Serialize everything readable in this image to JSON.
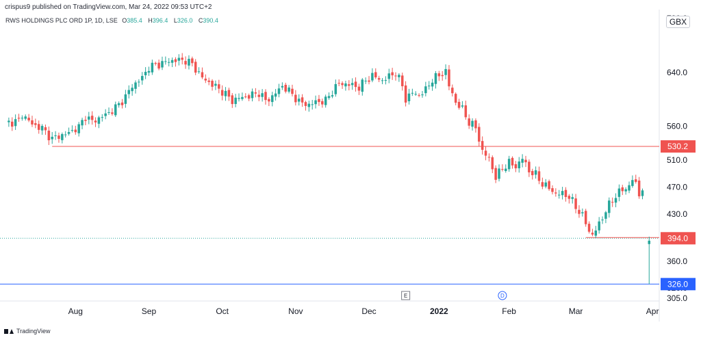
{
  "header": {
    "publisher": "crispus9 published on TradingView.com, Mar 24, 2022 09:53 UTC+2"
  },
  "legend": {
    "symbol": "RWS HOLDINGS PLC ORD 1P, 1D, LSE",
    "open_label": "O",
    "open": "385.4",
    "high_label": "H",
    "high": "396.4",
    "low_label": "L",
    "low": "326.0",
    "close_label": "C",
    "close": "390.4"
  },
  "currency": "GBX",
  "footer": {
    "brand": "TradingView"
  },
  "colors": {
    "up": "#26a69a",
    "down": "#ef5350",
    "resistance_line": "#ef5350",
    "support_line": "#2962ff",
    "current_price_tag": "#ef5350",
    "low_price_tag": "#2962ff",
    "axis_text": "#131722",
    "grid_line": "#e0e3eb"
  },
  "chart_data": {
    "type": "candlestick",
    "title": "",
    "ylim": [
      305,
      720
    ],
    "y_ticks": [
      {
        "value": 720,
        "label": "720.0"
      },
      {
        "value": 640,
        "label": "640.0"
      },
      {
        "value": 560,
        "label": "560.0"
      },
      {
        "value": 510,
        "label": "510.0"
      },
      {
        "value": 470,
        "label": "470.0"
      },
      {
        "value": 430,
        "label": "430.0"
      },
      {
        "value": 360,
        "label": "360.0"
      },
      {
        "value": 320,
        "label": "320.0"
      },
      {
        "value": 305,
        "label": "305.0"
      }
    ],
    "x_ticks": [
      {
        "index": 21,
        "label": "Aug",
        "bold": false
      },
      {
        "index": 43,
        "label": "Sep",
        "bold": false
      },
      {
        "index": 65,
        "label": "Oct",
        "bold": false
      },
      {
        "index": 87,
        "label": "Nov",
        "bold": false
      },
      {
        "index": 109,
        "label": "Dec",
        "bold": false
      },
      {
        "index": 130,
        "label": "2022",
        "bold": true
      },
      {
        "index": 151,
        "label": "Feb",
        "bold": false
      },
      {
        "index": 171,
        "label": "Mar",
        "bold": false
      },
      {
        "index": 194,
        "label": "Apr",
        "bold": false
      }
    ],
    "bar_count": 196,
    "price_tags": [
      {
        "value": 530.2,
        "label": "530.2",
        "color": "#ef5350"
      },
      {
        "value": 394.0,
        "label": "394.0",
        "color": "#ef5350"
      },
      {
        "value": 326.0,
        "label": "326.0",
        "color": "#2962ff"
      }
    ],
    "markers": [
      {
        "index": 120,
        "label": "E"
      },
      {
        "index": 149,
        "label": "D"
      }
    ],
    "closes": [
      [
        0,
        565
      ],
      [
        4,
        568
      ],
      [
        5,
        578
      ],
      [
        8,
        563
      ],
      [
        11,
        557
      ],
      [
        14,
        541
      ],
      [
        16,
        546
      ],
      [
        18,
        548
      ],
      [
        22,
        559
      ],
      [
        24,
        575
      ],
      [
        26,
        567
      ],
      [
        28,
        572
      ],
      [
        31,
        580
      ],
      [
        34,
        592
      ],
      [
        36,
        604
      ],
      [
        38,
        620
      ],
      [
        41,
        632
      ],
      [
        43,
        648
      ],
      [
        46,
        652
      ],
      [
        49,
        657
      ],
      [
        51,
        658
      ],
      [
        54,
        658
      ],
      [
        56,
        652
      ],
      [
        59,
        632
      ],
      [
        62,
        622
      ],
      [
        65,
        612
      ],
      [
        68,
        598
      ],
      [
        70,
        602
      ],
      [
        73,
        605
      ],
      [
        76,
        610
      ],
      [
        78,
        598
      ],
      [
        80,
        604
      ],
      [
        83,
        620
      ],
      [
        86,
        608
      ],
      [
        88,
        596
      ],
      [
        91,
        592
      ],
      [
        93,
        596
      ],
      [
        96,
        598
      ],
      [
        98,
        612
      ],
      [
        100,
        624
      ],
      [
        103,
        622
      ],
      [
        106,
        618
      ],
      [
        108,
        628
      ],
      [
        110,
        635
      ],
      [
        113,
        628
      ],
      [
        115,
        634
      ],
      [
        117,
        640
      ],
      [
        119,
        620
      ],
      [
        120,
        600
      ],
      [
        122,
        610
      ],
      [
        124,
        606
      ],
      [
        126,
        614
      ],
      [
        128,
        630
      ],
      [
        130,
        635
      ],
      [
        132,
        642
      ],
      [
        133,
        620
      ],
      [
        135,
        596
      ],
      [
        137,
        585
      ],
      [
        139,
        566
      ],
      [
        141,
        558
      ],
      [
        143,
        523
      ],
      [
        145,
        512
      ],
      [
        147,
        484
      ],
      [
        149,
        498
      ],
      [
        151,
        506
      ],
      [
        153,
        500
      ],
      [
        155,
        513
      ],
      [
        157,
        494
      ],
      [
        159,
        488
      ],
      [
        161,
        475
      ],
      [
        163,
        468
      ],
      [
        165,
        460
      ],
      [
        167,
        460
      ],
      [
        169,
        456
      ],
      [
        171,
        440
      ],
      [
        173,
        428
      ],
      [
        175,
        404
      ],
      [
        176,
        400
      ],
      [
        178,
        414
      ],
      [
        180,
        436
      ],
      [
        182,
        450
      ],
      [
        184,
        464
      ],
      [
        186,
        466
      ],
      [
        188,
        482
      ],
      [
        189,
        472
      ],
      [
        190,
        460
      ],
      [
        191,
        465
      ]
    ],
    "last_candle": {
      "index": 193,
      "open": 385.4,
      "high": 396.4,
      "low": 326.0,
      "close": 390.4
    },
    "xlabel": "",
    "ylabel": ""
  }
}
